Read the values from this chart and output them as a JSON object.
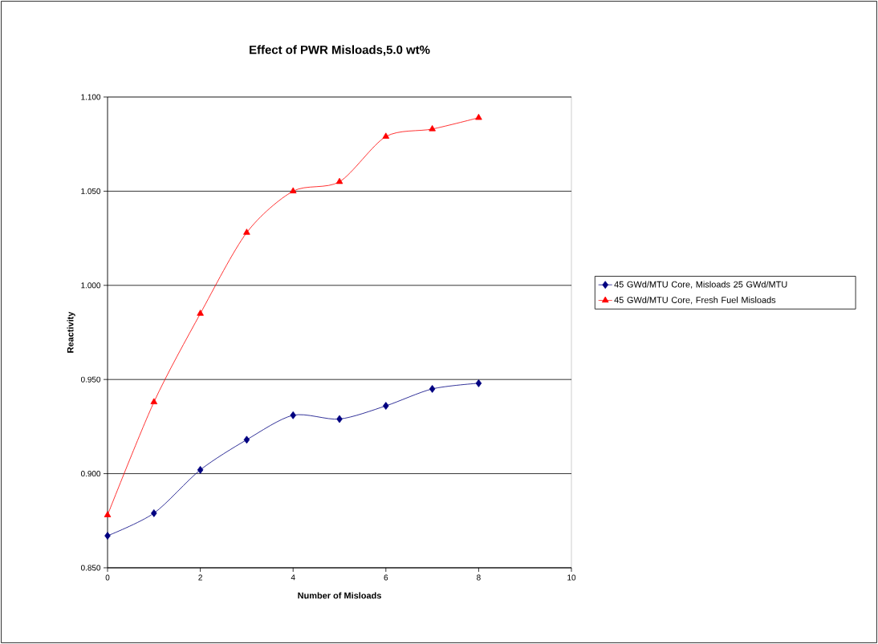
{
  "chart_data": {
    "type": "line",
    "title": "Effect of PWR Misloads,5.0 wt%",
    "xlabel": "Number of Misloads",
    "ylabel": "Reactivity",
    "series": [
      {
        "name": "45 GWd/MTU Core, Misloads 25 GWd/MTU",
        "color": "#000080",
        "marker": "diamond",
        "x": [
          0,
          1,
          2,
          3,
          4,
          5,
          6,
          7,
          8
        ],
        "values": [
          0.867,
          0.879,
          0.902,
          0.918,
          0.931,
          0.929,
          0.936,
          0.945,
          0.948
        ]
      },
      {
        "name": "45 GWd/MTU Core, Fresh Fuel Misloads",
        "color": "#ff0000",
        "marker": "triangle",
        "x": [
          0,
          1,
          2,
          3,
          4,
          5,
          6,
          7,
          8
        ],
        "values": [
          0.878,
          0.938,
          0.985,
          1.028,
          1.05,
          1.055,
          1.079,
          1.083,
          1.089
        ]
      }
    ],
    "xlim": [
      0,
      10
    ],
    "xticks": [
      0,
      2,
      4,
      6,
      8,
      10
    ],
    "ylim": [
      0.85,
      1.1
    ],
    "yticks": [
      {
        "value": 0.85,
        "label": "0.850"
      },
      {
        "value": 0.9,
        "label": "0.900"
      },
      {
        "value": 0.95,
        "label": "0.950"
      },
      {
        "value": 1.0,
        "label": "1.000"
      },
      {
        "value": 1.05,
        "label": "1.050"
      },
      {
        "value": 1.1,
        "label": "1.100"
      }
    ],
    "grid": "y",
    "legend": "right",
    "line_style": "solid"
  }
}
